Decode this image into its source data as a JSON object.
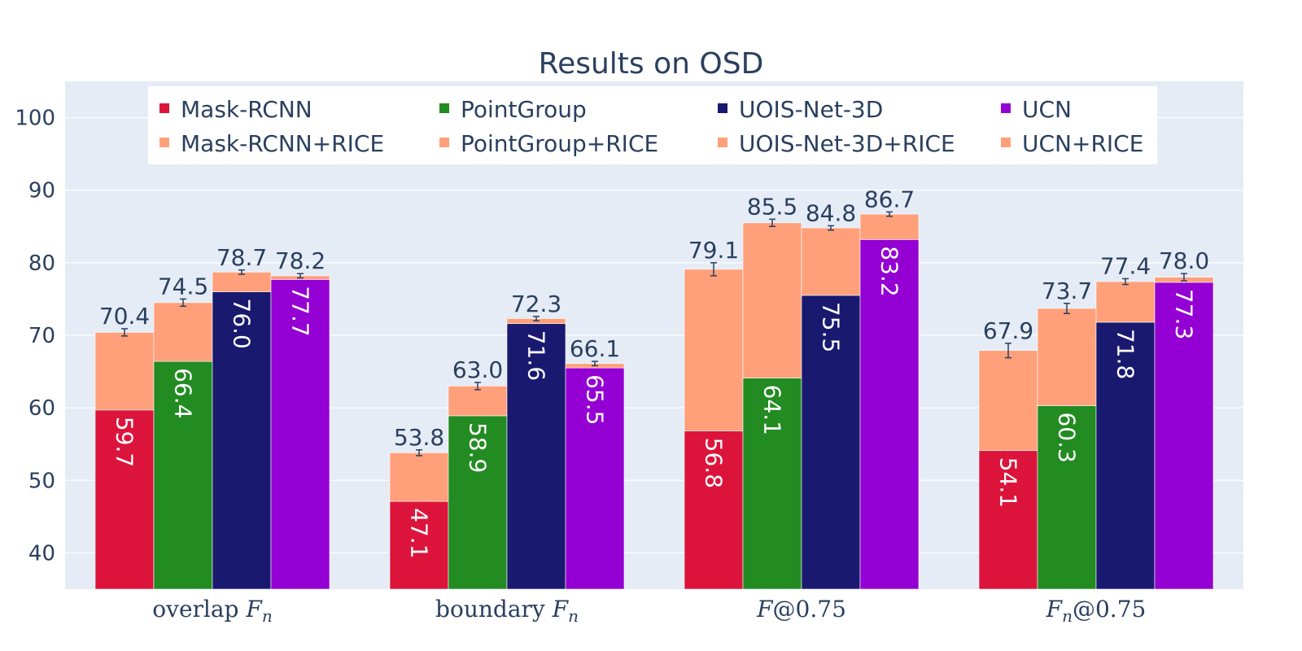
{
  "chart_data": {
    "type": "bar",
    "title": "Results on OSD",
    "categories": [
      "overlap F_n",
      "boundary F_n",
      "F@0.75",
      "F_n@0.75"
    ],
    "category_display": [
      {
        "main": "overlap ",
        "italic": "F",
        "sub": "n",
        "tail": ""
      },
      {
        "main": "boundary ",
        "italic": "F",
        "sub": "n",
        "tail": ""
      },
      {
        "main": "",
        "italic": "F",
        "sub": "",
        "tail": "@0.75"
      },
      {
        "main": "",
        "italic": "F",
        "sub": "n",
        "tail": "@0.75"
      }
    ],
    "yticks": [
      40,
      50,
      60,
      70,
      80,
      90,
      100
    ],
    "ylim": [
      35,
      105
    ],
    "grid": true,
    "legend_position": "top-inside",
    "series": [
      {
        "name": "Mask-RCNN",
        "color": "#dc143c",
        "rice_name": "Mask-RCNN+RICE",
        "base": [
          59.7,
          47.1,
          56.8,
          54.1
        ],
        "total": [
          70.4,
          53.8,
          79.1,
          67.9
        ],
        "error": [
          0.5,
          0.4,
          0.9,
          1.0
        ]
      },
      {
        "name": "PointGroup",
        "color": "#228b22",
        "rice_name": "PointGroup+RICE",
        "base": [
          66.4,
          58.9,
          64.1,
          60.3
        ],
        "total": [
          74.5,
          63.0,
          85.5,
          73.7
        ],
        "error": [
          0.5,
          0.5,
          0.5,
          0.7
        ]
      },
      {
        "name": "UOIS-Net-3D",
        "color": "#191970",
        "rice_name": "UOIS-Net-3D+RICE",
        "base": [
          76.0,
          71.6,
          75.5,
          71.8
        ],
        "total": [
          78.7,
          72.3,
          84.8,
          77.4
        ],
        "error": [
          0.3,
          0.3,
          0.3,
          0.4
        ]
      },
      {
        "name": "UCN",
        "color": "#9400d3",
        "rice_name": "UCN+RICE",
        "base": [
          77.7,
          65.5,
          83.2,
          77.3
        ],
        "total": [
          78.2,
          66.1,
          86.7,
          78.0
        ],
        "error": [
          0.3,
          0.3,
          0.3,
          0.5
        ]
      }
    ],
    "rice_color": "#ffa07a"
  }
}
